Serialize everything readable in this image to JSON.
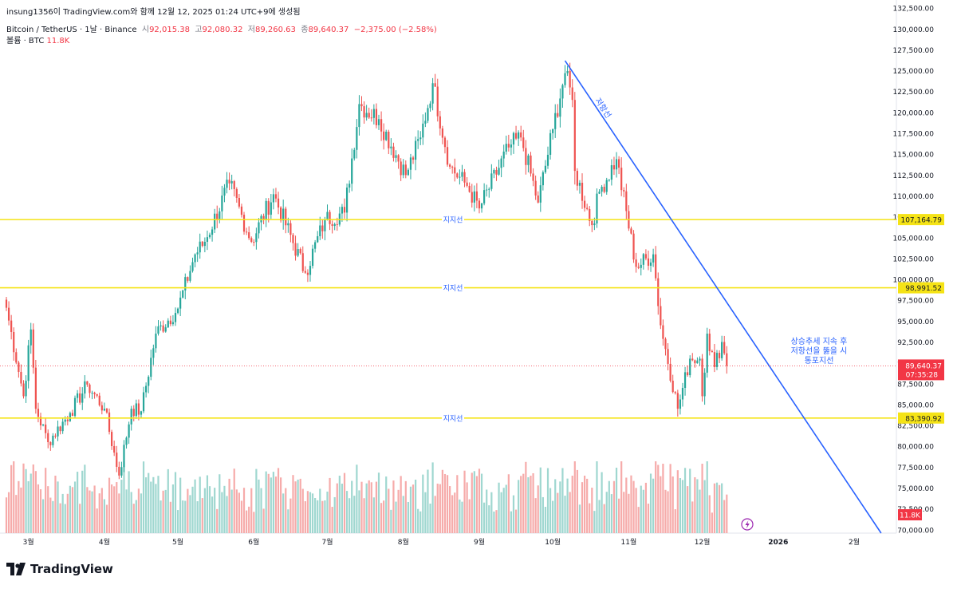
{
  "header": {
    "snapshot_credit": "insung1356이 TradingView.com와 함께 12월 12, 2025 01:24 UTC+9에 생성됨",
    "symbol": "Bitcoin / TetherUS · 1날 · Binance",
    "open_label": "시",
    "open_value": "92,015.38",
    "high_label": "고",
    "high_value": "92,080.32",
    "low_label": "저",
    "low_value": "89,260.63",
    "close_label": "종",
    "close_value": "89,640.37",
    "change": "−2,375.00 (−2.58%)",
    "volume_label": "볼륨 · BTC",
    "volume_value": "11.8K"
  },
  "brand": {
    "name": "TradingView"
  },
  "colors": {
    "up": "#26a69a",
    "down": "#ef5350",
    "up_vol": "#9fd7d0",
    "down_vol": "#f6abaa",
    "support": "#f5e316",
    "resistance": "#2962ff",
    "annotation_text": "#2962ff",
    "last_price": "#f23645"
  },
  "chart_data": {
    "type": "candlestick",
    "x_ticks": [
      {
        "label": "3월",
        "date": "2025-03-01"
      },
      {
        "label": "4월",
        "date": "2025-04-01"
      },
      {
        "label": "5월",
        "date": "2025-05-01"
      },
      {
        "label": "6월",
        "date": "2025-06-01"
      },
      {
        "label": "7월",
        "date": "2025-07-01"
      },
      {
        "label": "8월",
        "date": "2025-08-01"
      },
      {
        "label": "9월",
        "date": "2025-09-01"
      },
      {
        "label": "10월",
        "date": "2025-10-01"
      },
      {
        "label": "11월",
        "date": "2025-11-01"
      },
      {
        "label": "12월",
        "date": "2025-12-01"
      },
      {
        "label": "2026",
        "date": "2026-01-01"
      },
      {
        "label": "2월",
        "date": "2026-02-01"
      }
    ],
    "y_ticks": [
      "70,000.00",
      "72,500.00",
      "75,000.00",
      "77,500.00",
      "80,000.00",
      "82,500.00",
      "85,000.00",
      "87,500.00",
      "90,000.00",
      "92,500.00",
      "95,000.00",
      "97,500.00",
      "100,000.00",
      "102,500.00",
      "105,000.00",
      "107,500.00",
      "110,000.00",
      "112,500.00",
      "115,000.00",
      "117,500.00",
      "120,000.00",
      "122,500.00",
      "125,000.00",
      "127,500.00",
      "130,000.00",
      "132,500.00"
    ],
    "y_range": [
      69600,
      132800
    ],
    "x_range": [
      "2025-02-20",
      "2026-02-14"
    ],
    "price_anchors": [
      [
        "2025-02-20",
        96600
      ],
      [
        "2025-02-27",
        86000
      ],
      [
        "2025-03-02",
        94000
      ],
      [
        "2025-03-04",
        84500
      ],
      [
        "2025-03-09",
        80500
      ],
      [
        "2025-03-18",
        84000
      ],
      [
        "2025-03-25",
        87400
      ],
      [
        "2025-04-01",
        84500
      ],
      [
        "2025-04-07",
        76500
      ],
      [
        "2025-04-12",
        84500
      ],
      [
        "2025-04-16",
        84200
      ],
      [
        "2025-04-22",
        93500
      ],
      [
        "2025-05-01",
        96500
      ],
      [
        "2025-05-08",
        103000
      ],
      [
        "2025-05-12",
        104500
      ],
      [
        "2025-05-22",
        111500
      ],
      [
        "2025-05-31",
        104500
      ],
      [
        "2025-06-09",
        110200
      ],
      [
        "2025-06-22",
        100800
      ],
      [
        "2025-06-30",
        107200
      ],
      [
        "2025-07-08",
        108000
      ],
      [
        "2025-07-14",
        121000
      ],
      [
        "2025-07-22",
        119200
      ],
      [
        "2025-08-02",
        112500
      ],
      [
        "2025-08-08",
        117000
      ],
      [
        "2025-08-13",
        123500
      ],
      [
        "2025-08-20",
        113500
      ],
      [
        "2025-08-27",
        111200
      ],
      [
        "2025-09-01",
        108500
      ],
      [
        "2025-09-13",
        115800
      ],
      [
        "2025-09-18",
        117000
      ],
      [
        "2025-09-25",
        109200
      ],
      [
        "2025-10-01",
        118000
      ],
      [
        "2025-10-06",
        124700
      ],
      [
        "2025-10-09",
        121500
      ],
      [
        "2025-10-10",
        113000
      ],
      [
        "2025-10-17",
        106500
      ],
      [
        "2025-10-20",
        110500
      ],
      [
        "2025-10-27",
        114400
      ],
      [
        "2025-11-04",
        101500
      ],
      [
        "2025-11-11",
        103000
      ],
      [
        "2025-11-14",
        94500
      ],
      [
        "2025-11-21",
        84500
      ],
      [
        "2025-11-26",
        90500
      ],
      [
        "2025-11-30",
        90500
      ],
      [
        "2025-12-01",
        86000
      ],
      [
        "2025-12-03",
        93500
      ],
      [
        "2025-12-06",
        89500
      ],
      [
        "2025-12-09",
        92500
      ],
      [
        "2025-12-11",
        89640
      ]
    ],
    "support_lines": [
      {
        "label": "지지선",
        "price": 107164.79,
        "price_label": "107,164.79"
      },
      {
        "label": "지지선",
        "price": 98991.52,
        "price_label": "98,991.52"
      },
      {
        "label": "지지선",
        "price": 83390.92,
        "price_label": "83,390.92"
      }
    ],
    "resistance_line": {
      "label": "저항선",
      "start": {
        "date": "2025-10-06",
        "price": 126200
      },
      "end": {
        "date": "2026-02-12",
        "price": 69600
      }
    },
    "annotation": [
      "상승추세 지속 후",
      "저항선을 뚫을 시",
      "통포지선"
    ],
    "last_price": {
      "value": 89640.37,
      "label": "89,640.37",
      "countdown": "07:35:28"
    },
    "volume_last_label": "11.8K"
  }
}
